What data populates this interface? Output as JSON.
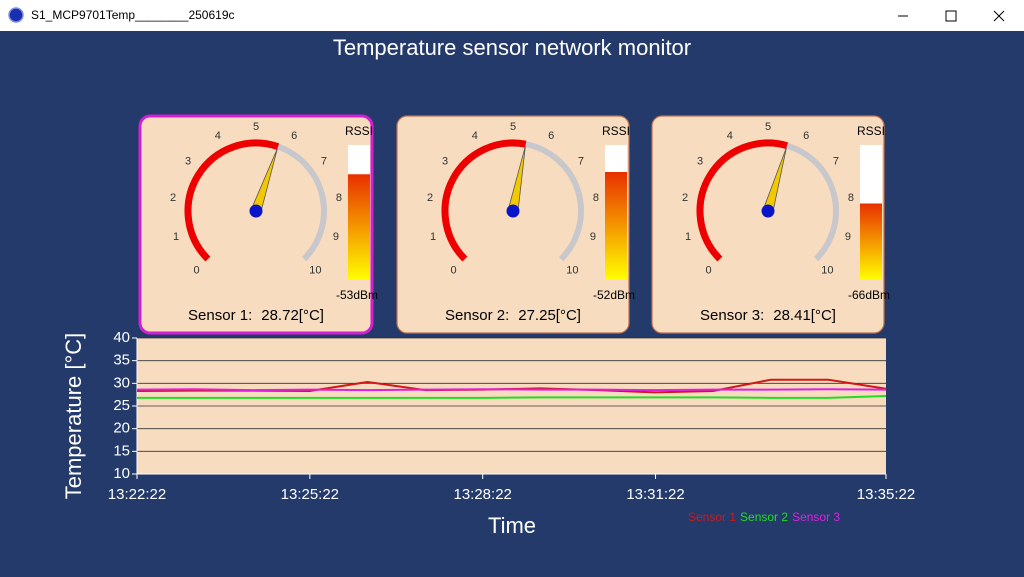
{
  "window": {
    "title": "S1_MCP9701Temp________250619c"
  },
  "app_title": "Temperature sensor network monitor",
  "gauges": [
    {
      "dial_ticks": [
        0,
        1,
        2,
        3,
        4,
        5,
        6,
        7,
        8,
        9,
        10
      ],
      "needle": 5.7,
      "rssi_title": "RSSI",
      "rssi": -53,
      "rssi_label": "-53dBm",
      "rssi_lim": [
        -100,
        -40
      ],
      "label": "Sensor 1:",
      "temperature": 28.72,
      "unit": "[°C]"
    },
    {
      "dial_ticks": [
        0,
        1,
        2,
        3,
        4,
        5,
        6,
        7,
        8,
        9,
        10
      ],
      "needle": 5.4,
      "rssi_title": "RSSI",
      "rssi": -52,
      "rssi_label": "-52dBm",
      "rssi_lim": [
        -100,
        -40
      ],
      "label": "Sensor 2:",
      "temperature": 27.25,
      "unit": "[°C]"
    },
    {
      "dial_ticks": [
        0,
        1,
        2,
        3,
        4,
        5,
        6,
        7,
        8,
        9,
        10
      ],
      "needle": 5.6,
      "rssi_title": "RSSI",
      "rssi": -66,
      "rssi_label": "-66dBm",
      "rssi_lim": [
        -100,
        -40
      ],
      "label": "Sensor 3:",
      "temperature": 28.41,
      "unit": "[°C]"
    }
  ],
  "chart_data": {
    "type": "line",
    "xlabel": "Time",
    "ylabel": "Temperature [°C]",
    "x": [
      48142,
      48202,
      48262,
      48322,
      48382,
      48442,
      48502,
      48562,
      48622,
      48682,
      48742,
      48802,
      48862,
      48922
    ],
    "series": [
      {
        "name": "Sensor 1",
        "color": "#d01818",
        "values": [
          28.3,
          28.4,
          28.4,
          28.3,
          30.3,
          28.5,
          28.6,
          28.9,
          28.5,
          28.0,
          28.3,
          30.8,
          30.8,
          28.8
        ]
      },
      {
        "name": "Sensor 2",
        "color": "#22dd22",
        "values": [
          26.8,
          26.8,
          26.8,
          26.8,
          26.8,
          26.8,
          26.8,
          26.9,
          26.9,
          26.9,
          26.9,
          26.8,
          26.8,
          27.2
        ]
      },
      {
        "name": "Sensor 3",
        "color": "#e020e0",
        "values": [
          28.6,
          28.7,
          28.5,
          28.6,
          28.5,
          28.6,
          28.7,
          28.6,
          28.6,
          28.5,
          28.6,
          28.6,
          28.7,
          28.6
        ]
      }
    ],
    "xlim": [
      48142,
      48922
    ],
    "xticks": [
      {
        "value": 48142,
        "label": "13:22:22"
      },
      {
        "value": 48322,
        "label": "13:25:22"
      },
      {
        "value": 48502,
        "label": "13:28:22"
      },
      {
        "value": 48682,
        "label": "13:31:22"
      },
      {
        "value": 48922,
        "label": "13:35:22"
      }
    ],
    "ylim": [
      10,
      40
    ],
    "yticks": [
      10,
      15,
      20,
      25,
      30,
      35,
      40
    ],
    "grid": true,
    "legend": "bottom-right"
  }
}
